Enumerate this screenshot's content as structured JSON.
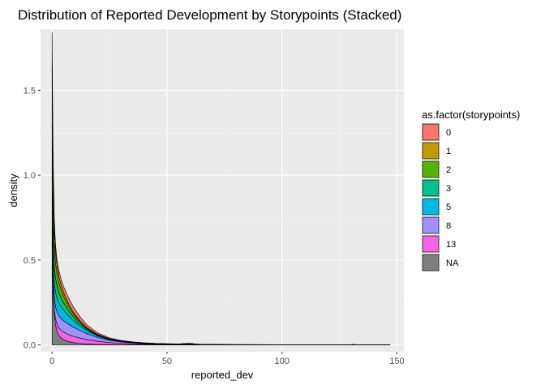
{
  "chart_data": {
    "type": "area",
    "stacked": true,
    "title": "Distribution of Reported Development by Storypoints (Stacked)",
    "xlabel": "reported_dev",
    "ylabel": "density",
    "xlim": [
      -5,
      153
    ],
    "ylim": [
      -0.04,
      1.86
    ],
    "x_ticks": [
      0,
      50,
      100,
      150
    ],
    "y_ticks": [
      0.0,
      0.5,
      1.0,
      1.5
    ],
    "x_tick_labels": [
      "0",
      "50",
      "100",
      "150"
    ],
    "y_tick_labels": [
      "0.0",
      "0.5",
      "1.0",
      "1.5"
    ],
    "grid": true,
    "legend": {
      "title": "as.factor(storypoints)",
      "position": "right",
      "entries": [
        "0",
        "1",
        "2",
        "3",
        "5",
        "8",
        "13",
        "NA"
      ]
    },
    "x": [
      0,
      0.5,
      1,
      1.5,
      2,
      2.5,
      3,
      4,
      5,
      6,
      7,
      8,
      9,
      10,
      12,
      15,
      18,
      20,
      25,
      30,
      35,
      40,
      45,
      50,
      55,
      58,
      60,
      62,
      65,
      70,
      80,
      100,
      120,
      130,
      131,
      132,
      140,
      147
    ],
    "series": [
      {
        "name": "NA",
        "color": "#7f7f7f",
        "values": [
          0.6,
          0.3,
          0.18,
          0.12,
          0.09,
          0.07,
          0.055,
          0.04,
          0.03,
          0.025,
          0.02,
          0.017,
          0.014,
          0.012,
          0.009,
          0.006,
          0.004,
          0.003,
          0.002,
          0.0015,
          0.001,
          0.001,
          0.001,
          0.001,
          0.0008,
          0.0008,
          0.0008,
          0.0008,
          0.0006,
          0.0005,
          0.0004,
          0.0003,
          0.0002,
          0.0002,
          0.0002,
          0.0002,
          0.0001,
          0
        ]
      },
      {
        "name": "13",
        "color": "#f564e3",
        "values": [
          0.02,
          0.025,
          0.03,
          0.035,
          0.04,
          0.042,
          0.045,
          0.045,
          0.045,
          0.044,
          0.042,
          0.04,
          0.038,
          0.036,
          0.032,
          0.026,
          0.022,
          0.018,
          0.012,
          0.008,
          0.006,
          0.004,
          0.003,
          0.002,
          0.0015,
          0.0012,
          0.001,
          0.001,
          0.0008,
          0.0006,
          0.0005,
          0.0003,
          0.0002,
          0.0002,
          0.0002,
          0.0002,
          0.0001,
          0
        ]
      },
      {
        "name": "8",
        "color": "#9e91fc",
        "values": [
          0.05,
          0.06,
          0.065,
          0.07,
          0.072,
          0.073,
          0.072,
          0.07,
          0.068,
          0.065,
          0.062,
          0.058,
          0.055,
          0.052,
          0.045,
          0.035,
          0.027,
          0.022,
          0.013,
          0.008,
          0.005,
          0.003,
          0.002,
          0.0015,
          0.001,
          0.001,
          0.001,
          0.001,
          0.0008,
          0.0005,
          0.0003,
          0.0002,
          0.0001,
          0.0001,
          0.0001,
          0.0001,
          0.0001,
          0
        ]
      },
      {
        "name": "5",
        "color": "#00b8e7",
        "values": [
          0.12,
          0.1,
          0.09,
          0.085,
          0.08,
          0.077,
          0.074,
          0.068,
          0.062,
          0.056,
          0.05,
          0.045,
          0.04,
          0.036,
          0.028,
          0.018,
          0.012,
          0.009,
          0.005,
          0.003,
          0.002,
          0.0015,
          0.001,
          0.001,
          0.0008,
          0.0008,
          0.0008,
          0.0008,
          0.0006,
          0.0004,
          0.0003,
          0.0002,
          0.0001,
          0.0001,
          0.0001,
          0.0001,
          0.0001,
          0
        ]
      },
      {
        "name": "3",
        "color": "#00c08d",
        "values": [
          0.2,
          0.14,
          0.1,
          0.085,
          0.075,
          0.068,
          0.062,
          0.052,
          0.044,
          0.038,
          0.033,
          0.028,
          0.024,
          0.02,
          0.014,
          0.008,
          0.005,
          0.004,
          0.002,
          0.0015,
          0.001,
          0.0008,
          0.0006,
          0.0005,
          0.0004,
          0.0004,
          0.0004,
          0.0004,
          0.0003,
          0.0002,
          0.0002,
          0.0001,
          0.0001,
          0.0001,
          0.0001,
          0.0001,
          0,
          0
        ]
      },
      {
        "name": "2",
        "color": "#53b400",
        "values": [
          0.3,
          0.18,
          0.12,
          0.09,
          0.075,
          0.065,
          0.057,
          0.047,
          0.038,
          0.032,
          0.026,
          0.022,
          0.018,
          0.015,
          0.01,
          0.006,
          0.004,
          0.003,
          0.0015,
          0.001,
          0.0008,
          0.0006,
          0.0004,
          0.0003,
          0.0003,
          0.0003,
          0.0003,
          0.0003,
          0.0002,
          0.0002,
          0.0001,
          0.0001,
          0.0001,
          0.0001,
          0.0001,
          0,
          0,
          0
        ]
      },
      {
        "name": "1",
        "color": "#c49a00",
        "values": [
          0.35,
          0.17,
          0.1,
          0.07,
          0.055,
          0.045,
          0.037,
          0.028,
          0.022,
          0.018,
          0.015,
          0.012,
          0.01,
          0.008,
          0.006,
          0.004,
          0.003,
          0.002,
          0.001,
          0.0008,
          0.0006,
          0.0005,
          0.0004,
          0.0003,
          0.0003,
          0.0035,
          0.0045,
          0.0015,
          0.0003,
          0.0002,
          0.0001,
          0.0001,
          0.0001,
          0.0001,
          0.0001,
          0,
          0,
          0
        ]
      },
      {
        "name": "0",
        "color": "#f8766d",
        "values": [
          0.2,
          0.09,
          0.05,
          0.04,
          0.035,
          0.034,
          0.034,
          0.035,
          0.036,
          0.036,
          0.035,
          0.034,
          0.032,
          0.03,
          0.025,
          0.017,
          0.012,
          0.009,
          0.005,
          0.003,
          0.002,
          0.0015,
          0.001,
          0.001,
          0.0008,
          0.0008,
          0.0008,
          0.0008,
          0.0006,
          0.0005,
          0.0004,
          0.0003,
          0.0002,
          0.0015,
          0.003,
          0.0006,
          0.0002,
          0
        ]
      }
    ]
  }
}
